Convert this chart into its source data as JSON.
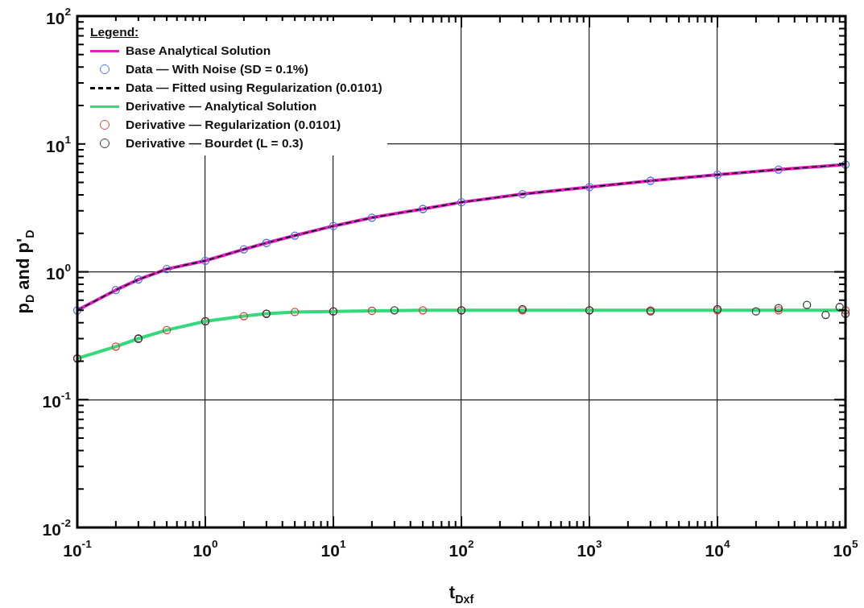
{
  "chart_data": {
    "type": "line",
    "xlabel": "t$_{Dxf}$",
    "ylabel": "p$_{D}$ and p'$_{D}$",
    "legend_title": "Legend:",
    "legend": "top left",
    "grid": true,
    "log": "xy",
    "x": [
      0.1,
      0.2,
      0.3,
      0.5,
      1,
      2,
      3,
      5,
      10,
      20,
      50,
      100,
      300,
      1000,
      3000,
      10000,
      30000,
      100000
    ],
    "xlim": [
      0.1,
      100000
    ],
    "ylim": [
      0.01,
      100
    ],
    "xticks": [
      {
        "value": 0.1,
        "label": "10$^{-1}$"
      },
      {
        "value": 1,
        "label": "10$^{0}$"
      },
      {
        "value": 10,
        "label": "10$^{1}$"
      },
      {
        "value": 100,
        "label": "10$^{2}$"
      },
      {
        "value": 1000,
        "label": "10$^{3}$"
      },
      {
        "value": 10000,
        "label": "10$^{4}$"
      },
      {
        "value": 100000,
        "label": "10$^{5}$"
      }
    ],
    "yticks": [
      {
        "value": 0.01,
        "label": "10$^{-2}$"
      },
      {
        "value": 0.1,
        "label": "10$^{-1}$"
      },
      {
        "value": 1,
        "label": "10$^{0}$"
      },
      {
        "value": 10,
        "label": "10$^{1}$"
      },
      {
        "value": 100,
        "label": "10$^{2}$"
      }
    ],
    "series": [
      {
        "name": "Data — With Noise (SD = 0.1%)",
        "type": "scatter",
        "marker": "circle",
        "color": "#4a6ee0",
        "values": [
          0.5,
          0.72,
          0.87,
          1.05,
          1.22,
          1.5,
          1.68,
          1.92,
          2.28,
          2.65,
          3.1,
          3.5,
          4.05,
          4.6,
          5.15,
          5.75,
          6.3,
          6.9
        ]
      },
      {
        "name": "Base Analytical Solution",
        "type": "line",
        "line_style": "solid",
        "color": "#e020c0",
        "values": [
          0.5,
          0.72,
          0.87,
          1.05,
          1.22,
          1.5,
          1.68,
          1.92,
          2.28,
          2.65,
          3.1,
          3.5,
          4.05,
          4.6,
          5.15,
          5.75,
          6.3,
          6.9
        ]
      },
      {
        "name": "Data — Fitted using Regularization (0.0101)",
        "type": "line",
        "line_style": "dashed",
        "color": "#000000",
        "values": [
          0.5,
          0.72,
          0.87,
          1.05,
          1.22,
          1.5,
          1.68,
          1.92,
          2.28,
          2.65,
          3.1,
          3.5,
          4.05,
          4.6,
          5.15,
          5.75,
          6.3,
          6.9
        ]
      },
      {
        "name": "Derivative — Bourdet (L = 0.3)",
        "type": "scatter",
        "marker": "circle",
        "color": "#333333",
        "x": [
          0.1,
          0.3,
          1,
          3,
          10,
          30,
          100,
          300,
          1000,
          3000,
          10000,
          20000,
          30000,
          50000,
          70000,
          90000,
          100000
        ],
        "values": [
          0.21,
          0.3,
          0.41,
          0.47,
          0.49,
          0.5,
          0.5,
          0.51,
          0.5,
          0.49,
          0.51,
          0.49,
          0.52,
          0.55,
          0.46,
          0.53,
          0.47
        ]
      },
      {
        "name": "Derivative — Regularization (0.0101)",
        "type": "scatter",
        "marker": "circle",
        "color": "#e03a3a",
        "values": [
          0.21,
          0.26,
          0.3,
          0.35,
          0.41,
          0.45,
          0.47,
          0.485,
          0.49,
          0.495,
          0.5,
          0.5,
          0.5,
          0.5,
          0.5,
          0.5,
          0.5,
          0.5
        ]
      },
      {
        "name": "Derivative — Analytical Solution",
        "type": "line",
        "line_style": "solid",
        "color": "#33d97a",
        "values": [
          0.21,
          0.26,
          0.3,
          0.35,
          0.41,
          0.45,
          0.47,
          0.485,
          0.49,
          0.495,
          0.5,
          0.5,
          0.5,
          0.5,
          0.5,
          0.5,
          0.5,
          0.5
        ]
      }
    ]
  }
}
